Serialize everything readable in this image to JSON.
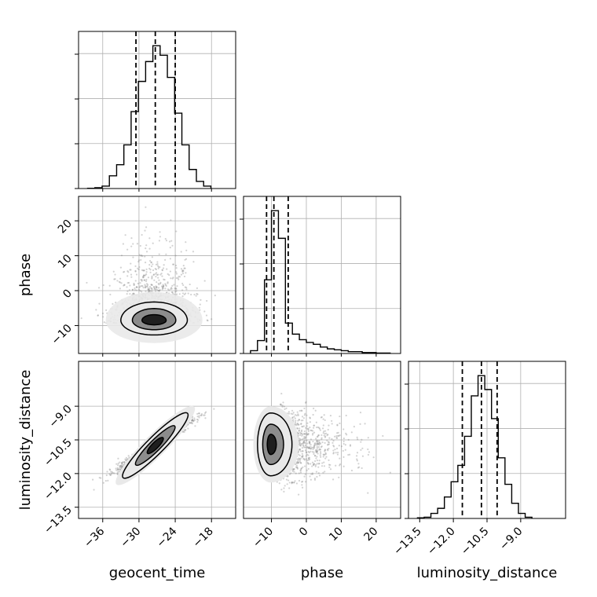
{
  "chart_data": {
    "type": "corner",
    "parameters": [
      "geocent_time",
      "phase",
      "luminosity_distance"
    ],
    "axis_labels": {
      "geocent_time": "geocent_time",
      "phase": "phase",
      "luminosity_distance": "luminosity_distance"
    },
    "ranges": {
      "geocent_time": [
        -40,
        -14
      ],
      "phase": [
        -18,
        27
      ],
      "luminosity_distance": [
        -14.0,
        -7.0
      ]
    },
    "tick_values": {
      "geocent_time": [
        -36,
        -30,
        -24,
        -18
      ],
      "phase": [
        -10,
        0,
        10,
        20
      ],
      "luminosity_distance": [
        -13.5,
        -12.0,
        -10.5,
        -9.0
      ]
    },
    "tick_labels": {
      "geocent_time": [
        "−36",
        "−30",
        "−24",
        "−18"
      ],
      "phase": [
        "−10",
        "0",
        "10",
        "20"
      ],
      "luminosity_distance": [
        "−13.5",
        "−12.0",
        "−10.5",
        "−9.0"
      ]
    },
    "quantiles": {
      "geocent_time": [
        -30.5,
        -27.3,
        -24.0
      ],
      "phase": [
        -11.4,
        -9.3,
        -5.2
      ],
      "luminosity_distance": [
        -11.6,
        -10.75,
        -10.05
      ]
    },
    "histograms": {
      "geocent_time": {
        "bins": [
          [
            -38.5,
            -37.3
          ],
          [
            -37.3,
            -36.1
          ],
          [
            -36.1,
            -34.9
          ],
          [
            -34.9,
            -33.7
          ],
          [
            -33.7,
            -32.5
          ],
          [
            -32.5,
            -31.3
          ],
          [
            -31.3,
            -30.1
          ],
          [
            -30.1,
            -28.9
          ],
          [
            -28.9,
            -27.7
          ],
          [
            -27.7,
            -26.5
          ],
          [
            -26.5,
            -25.3
          ],
          [
            -25.3,
            -24.1
          ],
          [
            -24.1,
            -22.9
          ],
          [
            -22.9,
            -21.7
          ],
          [
            -21.7,
            -20.5
          ],
          [
            -20.5,
            -19.3
          ],
          [
            -19.3,
            -18.1
          ]
        ],
        "counts": [
          0.3,
          1,
          3,
          16,
          30,
          55,
          97,
          135,
          160,
          180,
          168,
          140,
          95,
          55,
          24,
          9,
          3
        ]
      },
      "phase": {
        "bins": [
          [
            -16,
            -14
          ],
          [
            -14,
            -12
          ],
          [
            -12,
            -10
          ],
          [
            -10,
            -8
          ],
          [
            -8,
            -6
          ],
          [
            -6,
            -4
          ],
          [
            -4,
            -2
          ],
          [
            -2,
            0
          ],
          [
            0,
            2
          ],
          [
            2,
            4
          ],
          [
            4,
            6
          ],
          [
            6,
            8
          ],
          [
            8,
            10
          ],
          [
            10,
            12
          ],
          [
            12,
            14
          ],
          [
            14,
            16
          ],
          [
            16,
            18
          ],
          [
            18,
            20
          ],
          [
            20,
            22
          ],
          [
            22,
            24
          ]
        ],
        "counts": [
          3,
          14,
          80,
          155,
          125,
          33,
          21,
          15,
          12,
          10,
          7,
          5,
          4,
          3,
          2,
          2,
          1,
          1,
          0.5,
          0.5
        ]
      },
      "luminosity_distance": {
        "bins": [
          [
            -13.6,
            -13.3
          ],
          [
            -13.3,
            -13.0
          ],
          [
            -13.0,
            -12.7
          ],
          [
            -12.7,
            -12.4
          ],
          [
            -12.4,
            -12.1
          ],
          [
            -12.1,
            -11.8
          ],
          [
            -11.8,
            -11.5
          ],
          [
            -11.5,
            -11.2
          ],
          [
            -11.2,
            -10.9
          ],
          [
            -10.9,
            -10.6
          ],
          [
            -10.6,
            -10.3
          ],
          [
            -10.3,
            -10.0
          ],
          [
            -10.0,
            -9.7
          ],
          [
            -9.7,
            -9.4
          ],
          [
            -9.4,
            -9.1
          ],
          [
            -9.1,
            -8.8
          ],
          [
            -8.8,
            -8.5
          ]
        ],
        "counts": [
          0.5,
          1,
          4,
          8,
          17,
          29,
          42,
          65,
          97,
          113,
          102,
          79,
          48,
          27,
          12,
          4,
          1
        ]
      }
    },
    "scatter_samples": {
      "geocent_time_vs_phase": {
        "x_center": -27.5,
        "x_sd": 3.2,
        "y_center": -9.5,
        "y_sd": 6.0,
        "n": 1400
      },
      "geocent_time_vs_luminosity_distance": {
        "x_center": -27.5,
        "x_sd": 3.0,
        "y_center": -10.75,
        "y_sd": 0.55,
        "correlation": 0.97,
        "n": 1200
      },
      "phase_vs_luminosity_distance": {
        "x_center": -8.5,
        "x_sd": 6.0,
        "y_center": -10.75,
        "y_sd": 0.7,
        "n": 1400
      }
    },
    "contour_levels": 3,
    "grid": true
  },
  "colors": {
    "points": "#808080",
    "contour": "#000000",
    "fill_dark": "#1f1f1f",
    "fill_mid": "#8c8c8c",
    "fill_light": "#e9e9e9",
    "grid": "#b0b0b0",
    "axis": "#000000"
  }
}
